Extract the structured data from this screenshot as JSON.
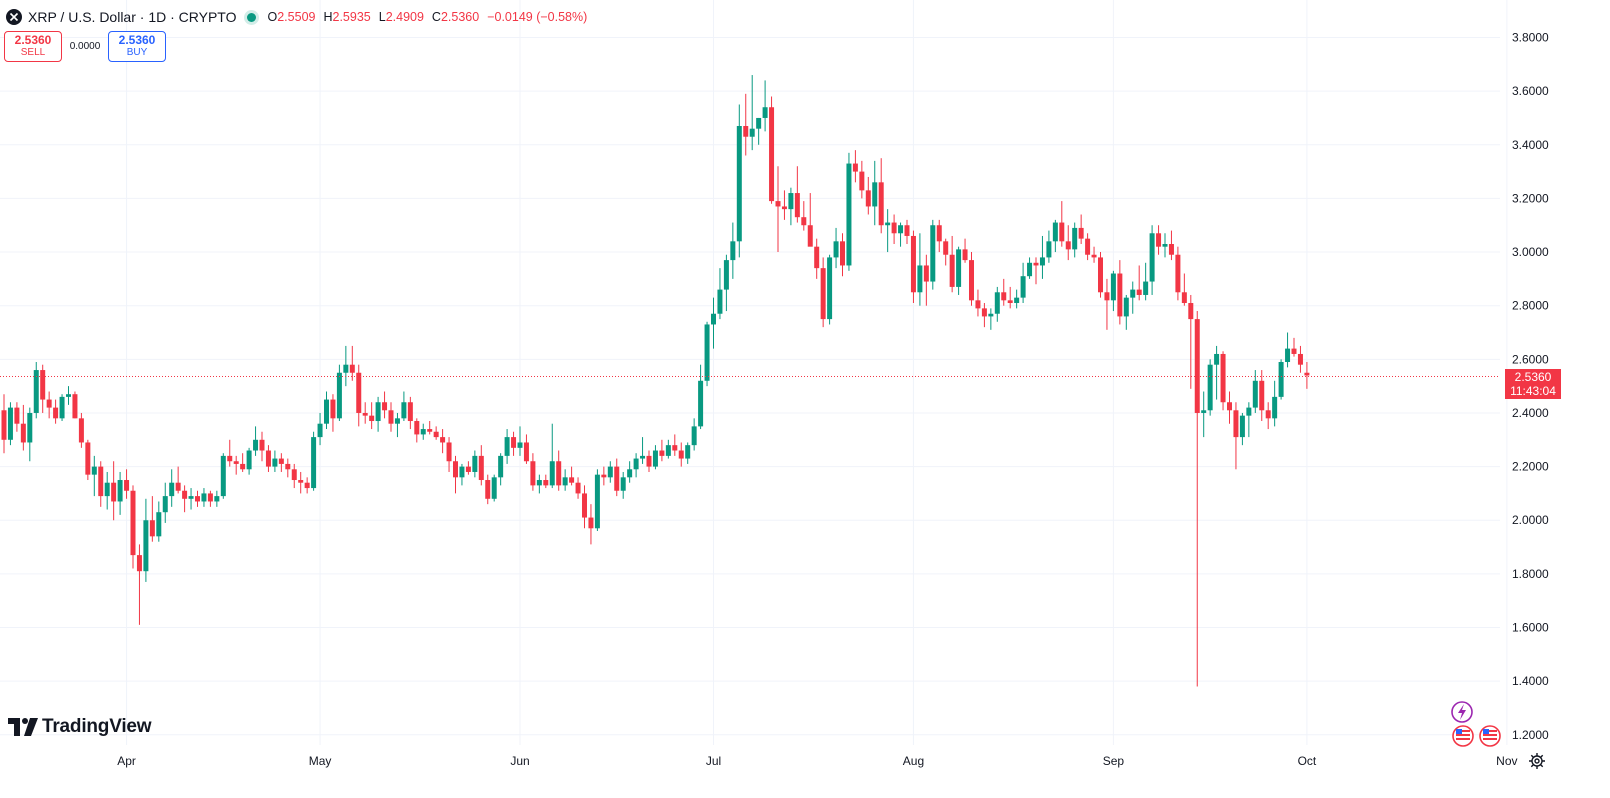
{
  "header": {
    "title": "XRP / U.S. Dollar · 1D · CRYPTO",
    "o_label": "O",
    "o_value": "2.5509",
    "h_label": "H",
    "h_value": "2.5935",
    "l_label": "L",
    "l_value": "2.4909",
    "c_label": "C",
    "c_value": "2.5360",
    "change": "−0.0149 (−0.58%)"
  },
  "trade": {
    "sell_price": "2.5360",
    "sell_label": "SELL",
    "spread": "0.0000",
    "buy_price": "2.5360",
    "buy_label": "BUY"
  },
  "price_tag": {
    "price": "2.5360",
    "countdown": "11:43:04"
  },
  "logo": {
    "text": "TradingView"
  },
  "colors": {
    "up": "#089981",
    "down": "#f23645",
    "grid": "#f0f3fa",
    "text": "#131722",
    "brand_badge": "#9c27b0"
  },
  "icons": [
    "close-circle-icon",
    "tradingview-logo-icon",
    "lightning-icon",
    "us-flag-icon",
    "settings-gear-icon"
  ],
  "chart_data": {
    "type": "candlestick",
    "title": "XRP / U.S. Dollar · 1D · CRYPTO",
    "ylim": [
      1.2,
      3.8
    ],
    "yticks": [
      "1.2000",
      "1.4000",
      "1.6000",
      "1.8000",
      "2.0000",
      "2.2000",
      "2.4000",
      "2.6000",
      "2.8000",
      "3.0000",
      "3.2000",
      "3.4000",
      "3.6000",
      "3.8000"
    ],
    "xticks": [
      {
        "label": "Apr",
        "date": "2025-04-01"
      },
      {
        "label": "May",
        "date": "2025-05-01"
      },
      {
        "label": "Jun",
        "date": "2025-06-01"
      },
      {
        "label": "Jul",
        "date": "2025-07-01"
      },
      {
        "label": "Aug",
        "date": "2025-08-01"
      },
      {
        "label": "Sep",
        "date": "2025-09-01"
      },
      {
        "label": "Oct",
        "date": "2025-10-01"
      },
      {
        "label": "Nov",
        "date": "2025-11-01"
      }
    ],
    "first_date": "2025-03-13",
    "last_price": 2.536,
    "grid": true,
    "candles": [
      [
        2.41,
        2.47,
        2.25,
        2.3
      ],
      [
        2.3,
        2.44,
        2.28,
        2.42
      ],
      [
        2.42,
        2.44,
        2.33,
        2.36
      ],
      [
        2.36,
        2.43,
        2.26,
        2.29
      ],
      [
        2.29,
        2.42,
        2.22,
        2.4
      ],
      [
        2.4,
        2.59,
        2.38,
        2.56
      ],
      [
        2.56,
        2.58,
        2.4,
        2.45
      ],
      [
        2.45,
        2.48,
        2.38,
        2.42
      ],
      [
        2.42,
        2.45,
        2.36,
        2.38
      ],
      [
        2.38,
        2.47,
        2.37,
        2.46
      ],
      [
        2.46,
        2.5,
        2.43,
        2.47
      ],
      [
        2.47,
        2.48,
        2.38,
        2.38
      ],
      [
        2.38,
        2.4,
        2.27,
        2.29
      ],
      [
        2.29,
        2.3,
        2.15,
        2.17
      ],
      [
        2.17,
        2.24,
        2.09,
        2.2
      ],
      [
        2.2,
        2.22,
        2.05,
        2.09
      ],
      [
        2.09,
        2.18,
        2.04,
        2.14
      ],
      [
        2.14,
        2.22,
        2.0,
        2.07
      ],
      [
        2.07,
        2.18,
        2.02,
        2.15
      ],
      [
        2.15,
        2.19,
        2.08,
        2.11
      ],
      [
        2.11,
        2.13,
        1.82,
        1.87
      ],
      [
        1.87,
        1.91,
        1.61,
        1.81
      ],
      [
        1.81,
        2.08,
        1.77,
        2.0
      ],
      [
        2.0,
        2.09,
        1.92,
        1.94
      ],
      [
        1.94,
        2.07,
        1.92,
        2.03
      ],
      [
        2.03,
        2.14,
        1.99,
        2.09
      ],
      [
        2.09,
        2.19,
        2.05,
        2.14
      ],
      [
        2.14,
        2.2,
        2.1,
        2.11
      ],
      [
        2.11,
        2.13,
        2.03,
        2.08
      ],
      [
        2.08,
        2.12,
        2.04,
        2.09
      ],
      [
        2.09,
        2.11,
        2.05,
        2.07
      ],
      [
        2.07,
        2.12,
        2.05,
        2.1
      ],
      [
        2.1,
        2.11,
        2.05,
        2.07
      ],
      [
        2.07,
        2.11,
        2.05,
        2.09
      ],
      [
        2.09,
        2.25,
        2.08,
        2.24
      ],
      [
        2.24,
        2.3,
        2.2,
        2.22
      ],
      [
        2.22,
        2.24,
        2.17,
        2.21
      ],
      [
        2.21,
        2.25,
        2.18,
        2.19
      ],
      [
        2.19,
        2.27,
        2.17,
        2.26
      ],
      [
        2.26,
        2.35,
        2.24,
        2.3
      ],
      [
        2.3,
        2.33,
        2.22,
        2.26
      ],
      [
        2.26,
        2.28,
        2.18,
        2.2
      ],
      [
        2.2,
        2.26,
        2.18,
        2.23
      ],
      [
        2.23,
        2.25,
        2.18,
        2.21
      ],
      [
        2.21,
        2.23,
        2.16,
        2.19
      ],
      [
        2.19,
        2.21,
        2.12,
        2.15
      ],
      [
        2.15,
        2.18,
        2.1,
        2.14
      ],
      [
        2.14,
        2.16,
        2.1,
        2.12
      ],
      [
        2.12,
        2.33,
        2.11,
        2.31
      ],
      [
        2.31,
        2.4,
        2.28,
        2.36
      ],
      [
        2.36,
        2.48,
        2.34,
        2.45
      ],
      [
        2.45,
        2.47,
        2.33,
        2.38
      ],
      [
        2.38,
        2.58,
        2.37,
        2.55
      ],
      [
        2.55,
        2.65,
        2.5,
        2.58
      ],
      [
        2.58,
        2.65,
        2.52,
        2.55
      ],
      [
        2.55,
        2.58,
        2.35,
        2.4
      ],
      [
        2.4,
        2.44,
        2.36,
        2.39
      ],
      [
        2.39,
        2.44,
        2.34,
        2.37
      ],
      [
        2.37,
        2.46,
        2.33,
        2.44
      ],
      [
        2.44,
        2.48,
        2.38,
        2.41
      ],
      [
        2.41,
        2.44,
        2.33,
        2.36
      ],
      [
        2.36,
        2.4,
        2.31,
        2.38
      ],
      [
        2.38,
        2.48,
        2.37,
        2.44
      ],
      [
        2.44,
        2.46,
        2.34,
        2.37
      ],
      [
        2.37,
        2.38,
        2.29,
        2.32
      ],
      [
        2.32,
        2.36,
        2.3,
        2.34
      ],
      [
        2.34,
        2.37,
        2.32,
        2.33
      ],
      [
        2.33,
        2.35,
        2.3,
        2.31
      ],
      [
        2.31,
        2.34,
        2.25,
        2.29
      ],
      [
        2.29,
        2.31,
        2.18,
        2.22
      ],
      [
        2.22,
        2.24,
        2.1,
        2.16
      ],
      [
        2.16,
        2.21,
        2.13,
        2.2
      ],
      [
        2.2,
        2.22,
        2.17,
        2.18
      ],
      [
        2.18,
        2.26,
        2.16,
        2.24
      ],
      [
        2.24,
        2.28,
        2.13,
        2.15
      ],
      [
        2.15,
        2.17,
        2.06,
        2.08
      ],
      [
        2.08,
        2.17,
        2.07,
        2.16
      ],
      [
        2.16,
        2.25,
        2.13,
        2.24
      ],
      [
        2.24,
        2.34,
        2.21,
        2.31
      ],
      [
        2.31,
        2.33,
        2.24,
        2.27
      ],
      [
        2.27,
        2.35,
        2.24,
        2.29
      ],
      [
        2.29,
        2.32,
        2.21,
        2.22
      ],
      [
        2.22,
        2.25,
        2.11,
        2.13
      ],
      [
        2.13,
        2.17,
        2.1,
        2.15
      ],
      [
        2.15,
        2.17,
        2.12,
        2.13
      ],
      [
        2.13,
        2.36,
        2.12,
        2.22
      ],
      [
        2.22,
        2.26,
        2.11,
        2.13
      ],
      [
        2.13,
        2.19,
        2.11,
        2.16
      ],
      [
        2.16,
        2.2,
        2.13,
        2.14
      ],
      [
        2.14,
        2.16,
        2.08,
        2.1
      ],
      [
        2.1,
        2.13,
        1.97,
        2.01
      ],
      [
        2.01,
        2.06,
        1.91,
        1.97
      ],
      [
        1.97,
        2.19,
        1.96,
        2.17
      ],
      [
        2.17,
        2.2,
        2.13,
        2.16
      ],
      [
        2.16,
        2.22,
        2.14,
        2.2
      ],
      [
        2.2,
        2.23,
        2.09,
        2.11
      ],
      [
        2.11,
        2.18,
        2.08,
        2.16
      ],
      [
        2.16,
        2.22,
        2.14,
        2.19
      ],
      [
        2.19,
        2.25,
        2.16,
        2.23
      ],
      [
        2.23,
        2.31,
        2.21,
        2.24
      ],
      [
        2.24,
        2.26,
        2.18,
        2.2
      ],
      [
        2.2,
        2.28,
        2.19,
        2.26
      ],
      [
        2.26,
        2.3,
        2.22,
        2.24
      ],
      [
        2.24,
        2.3,
        2.23,
        2.28
      ],
      [
        2.28,
        2.32,
        2.24,
        2.26
      ],
      [
        2.26,
        2.29,
        2.2,
        2.23
      ],
      [
        2.23,
        2.29,
        2.21,
        2.28
      ],
      [
        2.28,
        2.38,
        2.26,
        2.35
      ],
      [
        2.35,
        2.58,
        2.34,
        2.52
      ],
      [
        2.52,
        2.74,
        2.5,
        2.73
      ],
      [
        2.73,
        2.83,
        2.64,
        2.77
      ],
      [
        2.77,
        2.94,
        2.75,
        2.86
      ],
      [
        2.86,
        2.99,
        2.78,
        2.97
      ],
      [
        2.97,
        3.11,
        2.9,
        3.04
      ],
      [
        3.04,
        3.55,
        2.98,
        3.47
      ],
      [
        3.47,
        3.59,
        3.36,
        3.43
      ],
      [
        3.43,
        3.66,
        3.38,
        3.46
      ],
      [
        3.46,
        3.5,
        3.4,
        3.5
      ],
      [
        3.5,
        3.64,
        3.45,
        3.54
      ],
      [
        3.54,
        3.58,
        3.18,
        3.19
      ],
      [
        3.19,
        3.32,
        3.0,
        3.17
      ],
      [
        3.17,
        3.23,
        3.12,
        3.16
      ],
      [
        3.16,
        3.24,
        3.1,
        3.22
      ],
      [
        3.22,
        3.32,
        3.11,
        3.13
      ],
      [
        3.13,
        3.19,
        3.08,
        3.1
      ],
      [
        3.1,
        3.22,
        3.03,
        3.02
      ],
      [
        3.02,
        3.05,
        2.9,
        2.94
      ],
      [
        2.94,
        2.98,
        2.72,
        2.75
      ],
      [
        2.75,
        2.99,
        2.73,
        2.98
      ],
      [
        2.98,
        3.09,
        2.94,
        3.04
      ],
      [
        3.04,
        3.07,
        2.91,
        2.95
      ],
      [
        2.95,
        3.37,
        2.93,
        3.33
      ],
      [
        3.33,
        3.38,
        3.26,
        3.3
      ],
      [
        3.3,
        3.34,
        3.2,
        3.23
      ],
      [
        3.23,
        3.28,
        3.14,
        3.17
      ],
      [
        3.17,
        3.34,
        3.1,
        3.26
      ],
      [
        3.26,
        3.35,
        3.07,
        3.1
      ],
      [
        3.1,
        3.16,
        3.0,
        3.11
      ],
      [
        3.11,
        3.14,
        3.03,
        3.07
      ],
      [
        3.07,
        3.11,
        3.02,
        3.1
      ],
      [
        3.1,
        3.12,
        3.03,
        3.06
      ],
      [
        3.06,
        3.08,
        2.81,
        2.85
      ],
      [
        2.85,
        3.07,
        2.8,
        2.95
      ],
      [
        2.95,
        2.99,
        2.8,
        2.89
      ],
      [
        2.89,
        3.12,
        2.86,
        3.1
      ],
      [
        3.1,
        3.12,
        3.0,
        3.04
      ],
      [
        3.04,
        3.05,
        2.95,
        2.99
      ],
      [
        2.99,
        3.06,
        2.85,
        2.87
      ],
      [
        2.87,
        3.02,
        2.84,
        3.01
      ],
      [
        3.01,
        3.05,
        2.96,
        2.97
      ],
      [
        2.97,
        3.0,
        2.8,
        2.82
      ],
      [
        2.82,
        2.86,
        2.76,
        2.79
      ],
      [
        2.79,
        2.81,
        2.72,
        2.76
      ],
      [
        2.76,
        2.79,
        2.71,
        2.77
      ],
      [
        2.77,
        2.87,
        2.74,
        2.85
      ],
      [
        2.85,
        2.9,
        2.8,
        2.82
      ],
      [
        2.82,
        2.87,
        2.79,
        2.81
      ],
      [
        2.81,
        2.86,
        2.79,
        2.83
      ],
      [
        2.83,
        2.96,
        2.81,
        2.91
      ],
      [
        2.91,
        2.98,
        2.9,
        2.96
      ],
      [
        2.96,
        2.98,
        2.88,
        2.95
      ],
      [
        2.95,
        3.06,
        2.9,
        2.98
      ],
      [
        2.98,
        3.08,
        2.96,
        3.04
      ],
      [
        3.04,
        3.12,
        3.0,
        3.11
      ],
      [
        3.11,
        3.19,
        3.02,
        3.04
      ],
      [
        3.04,
        3.1,
        2.97,
        3.01
      ],
      [
        3.01,
        3.11,
        2.98,
        3.09
      ],
      [
        3.09,
        3.14,
        3.03,
        3.05
      ],
      [
        3.05,
        3.07,
        2.97,
        2.99
      ],
      [
        2.99,
        3.02,
        2.96,
        2.98
      ],
      [
        2.98,
        3.0,
        2.83,
        2.85
      ],
      [
        2.85,
        2.9,
        2.71,
        2.82
      ],
      [
        2.82,
        2.93,
        2.78,
        2.92
      ],
      [
        2.92,
        2.97,
        2.73,
        2.76
      ],
      [
        2.76,
        2.84,
        2.71,
        2.83
      ],
      [
        2.83,
        2.89,
        2.77,
        2.86
      ],
      [
        2.86,
        2.95,
        2.82,
        2.84
      ],
      [
        2.84,
        2.96,
        2.82,
        2.89
      ],
      [
        2.89,
        3.1,
        2.84,
        3.07
      ],
      [
        3.07,
        3.1,
        2.99,
        3.02
      ],
      [
        3.02,
        3.07,
        2.98,
        3.03
      ],
      [
        3.03,
        3.08,
        2.97,
        2.99
      ],
      [
        2.99,
        3.02,
        2.82,
        2.85
      ],
      [
        2.85,
        2.92,
        2.8,
        2.81
      ],
      [
        2.81,
        2.84,
        2.49,
        2.75
      ],
      [
        2.75,
        2.78,
        1.38,
        2.4
      ],
      [
        2.4,
        2.48,
        2.31,
        2.41
      ],
      [
        2.41,
        2.6,
        2.39,
        2.58
      ],
      [
        2.58,
        2.65,
        2.45,
        2.62
      ],
      [
        2.62,
        2.63,
        2.41,
        2.44
      ],
      [
        2.44,
        2.48,
        2.36,
        2.41
      ],
      [
        2.41,
        2.44,
        2.19,
        2.31
      ],
      [
        2.31,
        2.4,
        2.28,
        2.39
      ],
      [
        2.39,
        2.44,
        2.31,
        2.42
      ],
      [
        2.42,
        2.56,
        2.4,
        2.52
      ],
      [
        2.52,
        2.56,
        2.37,
        2.41
      ],
      [
        2.41,
        2.44,
        2.34,
        2.38
      ],
      [
        2.38,
        2.52,
        2.35,
        2.46
      ],
      [
        2.46,
        2.6,
        2.45,
        2.59
      ],
      [
        2.59,
        2.7,
        2.57,
        2.64
      ],
      [
        2.64,
        2.68,
        2.61,
        2.62
      ],
      [
        2.62,
        2.65,
        2.55,
        2.58
      ],
      [
        2.55,
        2.59,
        2.49,
        2.54
      ]
    ]
  }
}
